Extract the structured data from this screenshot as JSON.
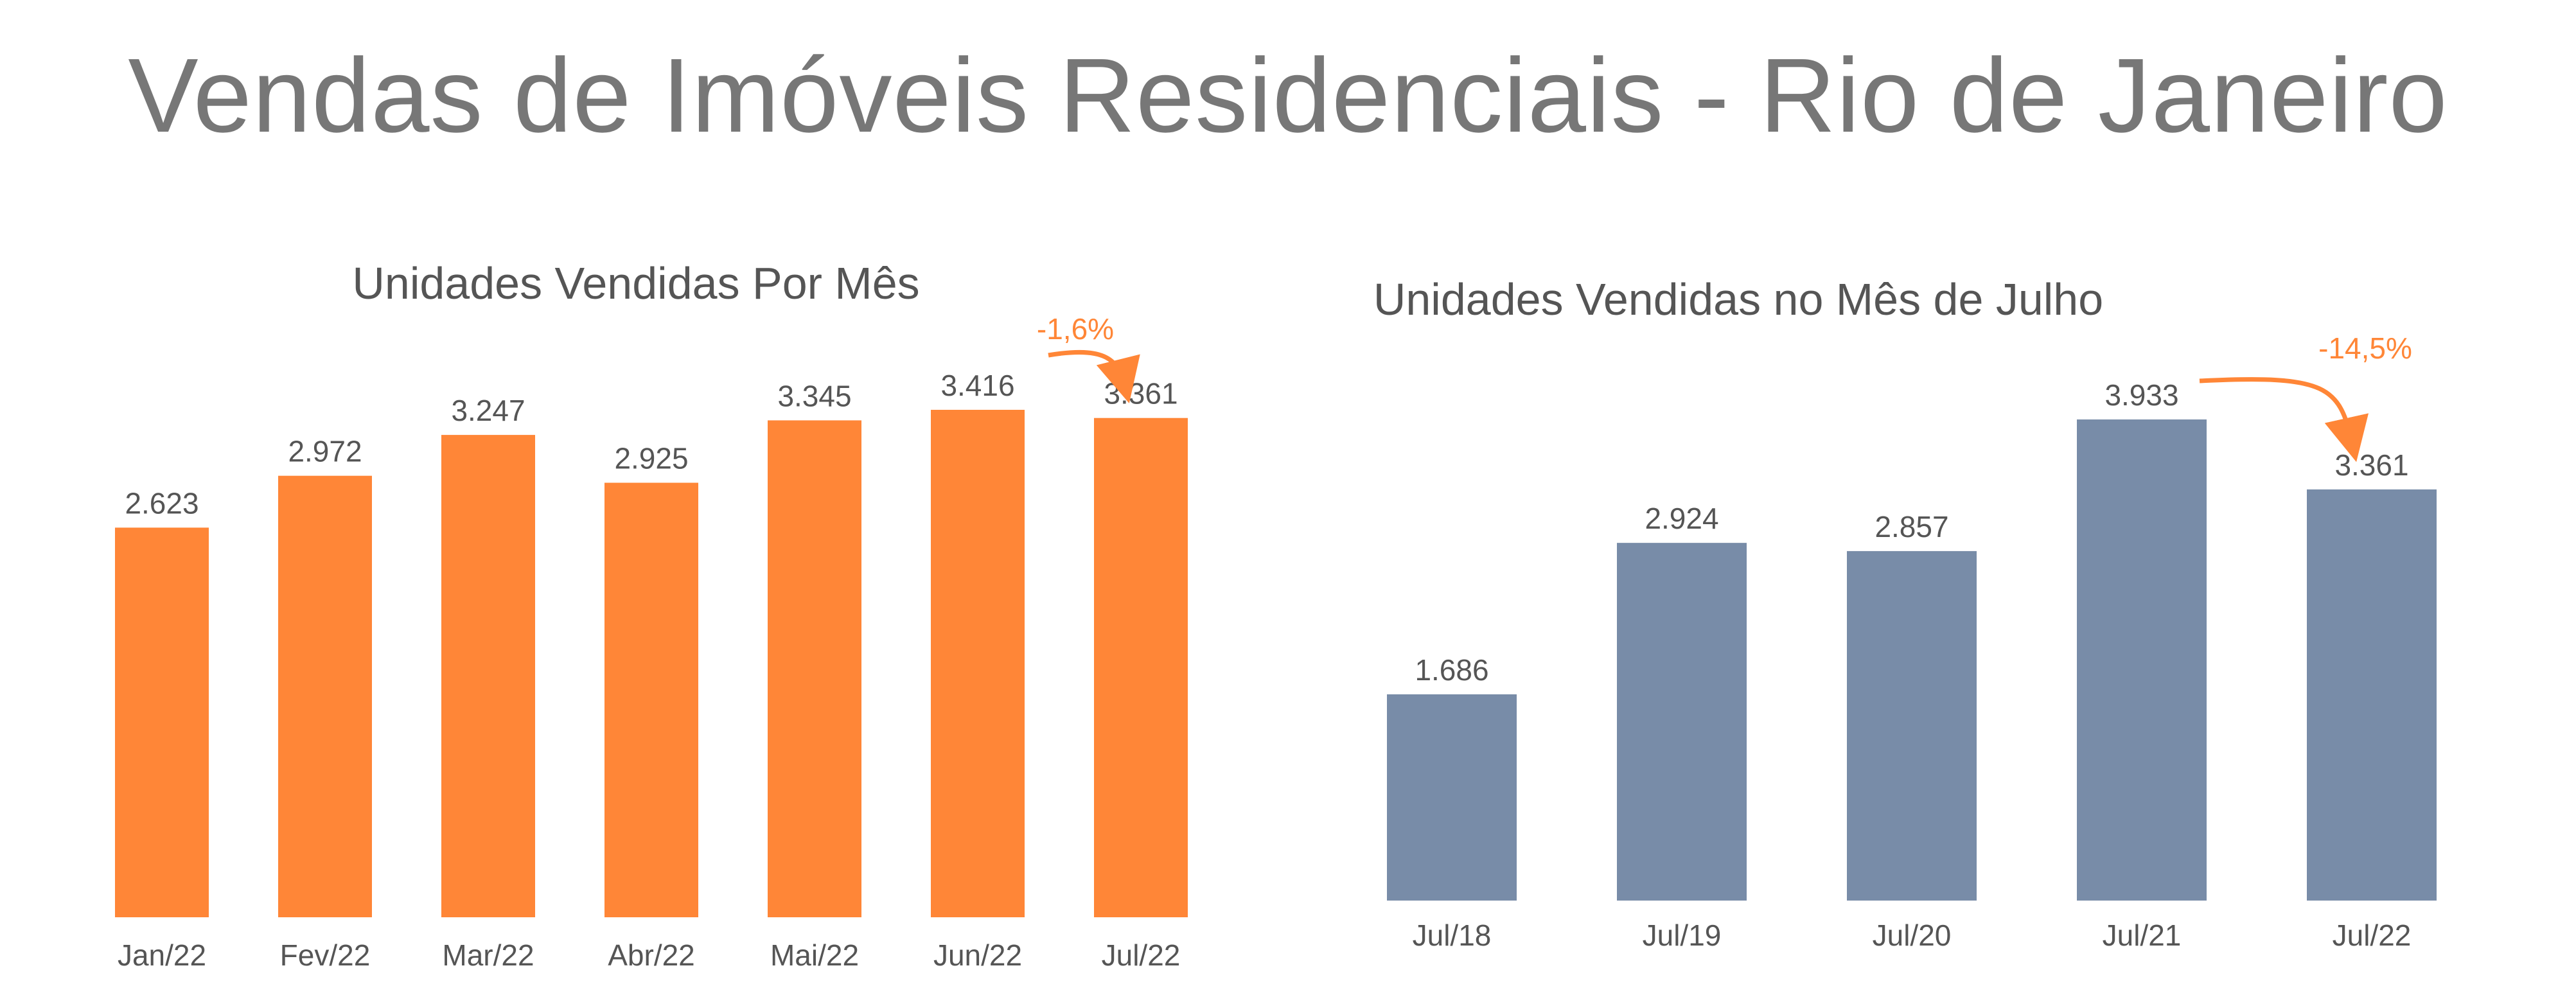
{
  "title": "Vendas de Imóveis Residenciais - Rio de Janeiro",
  "colors": {
    "orange": "#FF8637",
    "blue": "#788CA8",
    "text": "#555555",
    "title": "#777777"
  },
  "chart_data": [
    {
      "type": "bar",
      "title": "Unidades Vendidas Por Mês",
      "categories": [
        "Jan/22",
        "Fev/22",
        "Mar/22",
        "Abr/22",
        "Mai/22",
        "Jun/22",
        "Jul/22"
      ],
      "values": [
        2623,
        2972,
        3247,
        2925,
        3345,
        3416,
        3361
      ],
      "labels": [
        "2.623",
        "2.972",
        "3.247",
        "2.925",
        "3.345",
        "3.416",
        "3.361"
      ],
      "color": "#FF8637",
      "ylim": [
        0,
        3416
      ],
      "annotation": {
        "text": "-1,6%",
        "from": "Jun/22",
        "to": "Jul/22"
      }
    },
    {
      "type": "bar",
      "title": "Unidades Vendidas no Mês de Julho",
      "categories": [
        "Jul/18",
        "Jul/19",
        "Jul/20",
        "Jul/21",
        "Jul/22"
      ],
      "values": [
        1686,
        2924,
        2857,
        3933,
        3361
      ],
      "labels": [
        "1.686",
        "2.924",
        "2.857",
        "3.933",
        "3.361"
      ],
      "color": "#788CA8",
      "ylim": [
        0,
        3933
      ],
      "annotation": {
        "text": "-14,5%",
        "from": "Jul/21",
        "to": "Jul/22"
      }
    }
  ]
}
